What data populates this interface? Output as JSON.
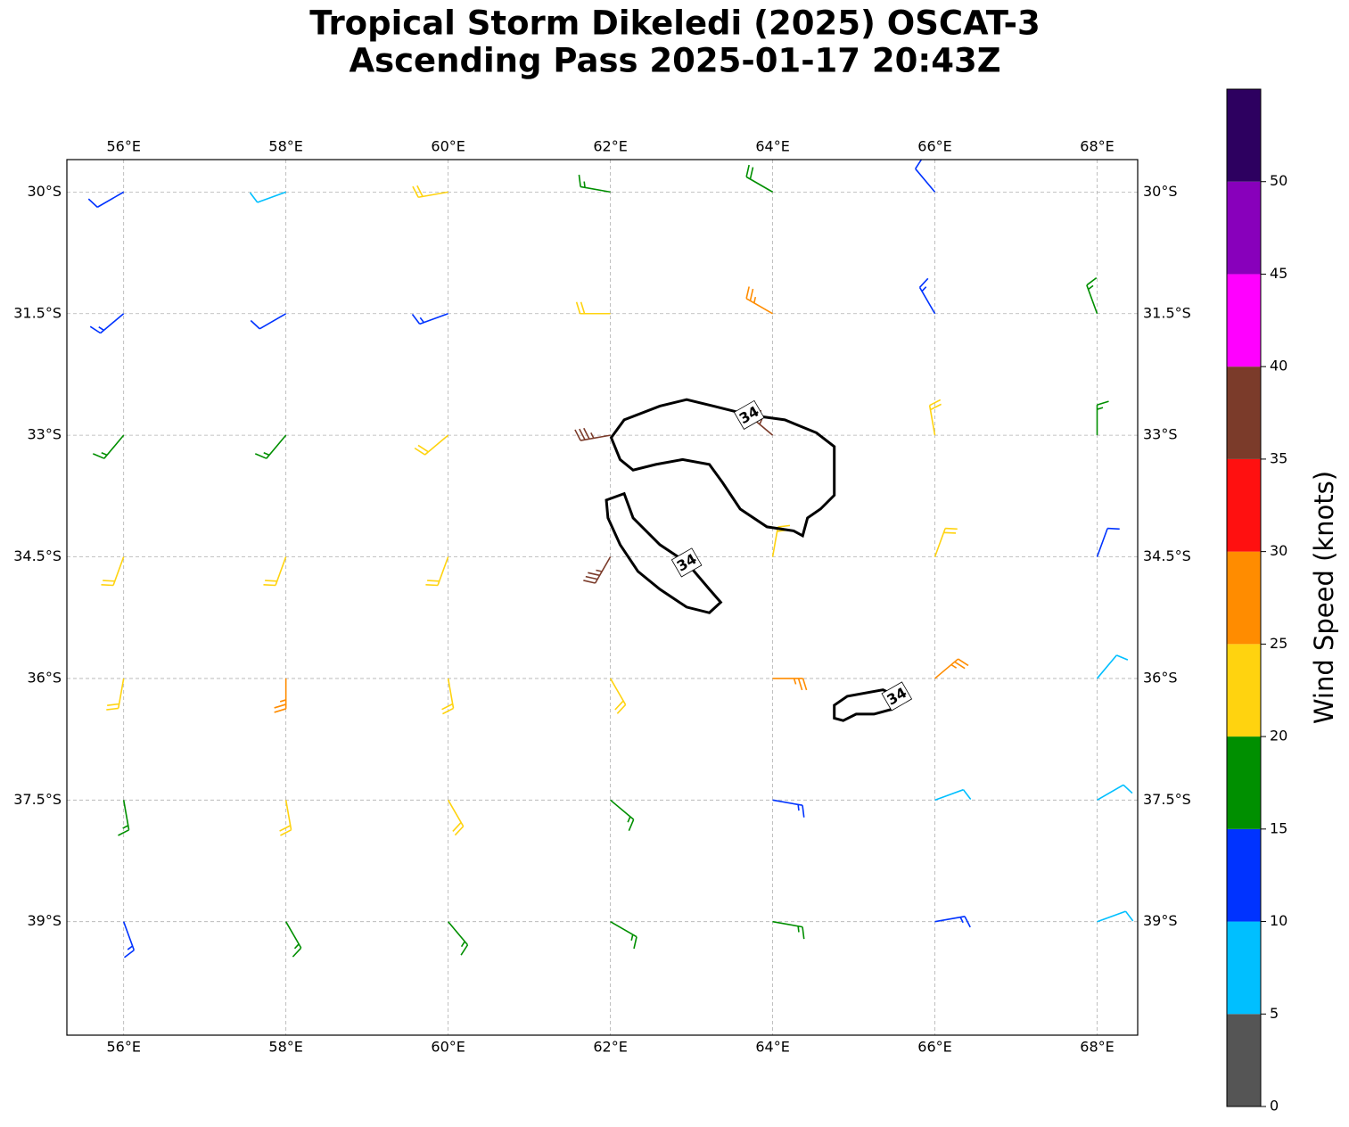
{
  "title": [
    "Tropical Storm Dikeledi (2025) OSCAT-3",
    "Ascending Pass 2025-01-17 20:43Z"
  ],
  "map": {
    "xlim": [
      55.3,
      68.5
    ],
    "ylim": [
      -40.4,
      -29.6
    ],
    "xticks": [
      {
        "value": 56,
        "label": "56°E"
      },
      {
        "value": 58,
        "label": "58°E"
      },
      {
        "value": 60,
        "label": "60°E"
      },
      {
        "value": 62,
        "label": "62°E"
      },
      {
        "value": 64,
        "label": "64°E"
      },
      {
        "value": 66,
        "label": "66°E"
      },
      {
        "value": 68,
        "label": "68°E"
      }
    ],
    "yticks": [
      {
        "value": -30,
        "label": "30°S"
      },
      {
        "value": -31.5,
        "label": "31.5°S"
      },
      {
        "value": -33,
        "label": "33°S"
      },
      {
        "value": -34.5,
        "label": "34.5°S"
      },
      {
        "value": -36,
        "label": "36°S"
      },
      {
        "value": -37.5,
        "label": "37.5°S"
      },
      {
        "value": -39,
        "label": "39°S"
      }
    ],
    "grid": true
  },
  "barbs": {
    "lon": [
      56,
      58,
      60,
      62,
      64,
      66,
      68
    ],
    "lat": [
      -30,
      -31.5,
      -33,
      -34.5,
      -36,
      -37.5,
      -39
    ],
    "speed": [
      [
        10,
        8,
        22,
        17,
        18,
        12,
        null
      ],
      [
        13,
        11,
        13,
        22,
        27,
        13,
        17
      ],
      [
        17,
        17,
        22,
        37,
        37,
        22,
        17
      ],
      [
        22,
        22,
        22,
        37,
        20,
        22,
        10
      ],
      [
        22,
        27,
        22,
        22,
        27,
        27,
        8
      ],
      [
        17,
        22,
        22,
        17,
        13,
        8,
        8
      ],
      [
        13,
        17,
        17,
        17,
        17,
        13,
        8
      ]
    ],
    "direction": [
      [
        240,
        250,
        260,
        280,
        300,
        320,
        null
      ],
      [
        230,
        240,
        250,
        270,
        300,
        330,
        340
      ],
      [
        220,
        220,
        230,
        260,
        310,
        350,
        0
      ],
      [
        200,
        200,
        200,
        210,
        10,
        20,
        20
      ],
      [
        190,
        180,
        170,
        150,
        90,
        50,
        40
      ],
      [
        170,
        170,
        150,
        130,
        100,
        70,
        60
      ],
      [
        160,
        150,
        140,
        120,
        100,
        80,
        70
      ]
    ]
  },
  "contours": [
    {
      "level": 34,
      "lon": [
        62.01,
        62.17,
        62.61,
        62.94,
        63.27,
        63.71,
        64.15,
        64.54,
        64.76,
        64.76,
        64.59,
        64.43,
        64.37,
        64.26,
        63.93,
        63.6,
        63.38,
        63.22,
        62.89,
        62.56,
        62.28,
        62.12
      ],
      "lat": [
        -33.03,
        -32.81,
        -32.64,
        -32.56,
        -32.64,
        -32.75,
        -32.81,
        -32.97,
        -33.14,
        -33.74,
        -33.91,
        -34.02,
        -34.24,
        -34.18,
        -34.13,
        -33.91,
        -33.58,
        -33.36,
        -33.3,
        -33.36,
        -33.43,
        -33.3
      ]
    },
    {
      "level": 34,
      "lon": [
        61.95,
        62.17,
        62.28,
        62.61,
        62.94,
        63.22,
        63.36,
        63.22,
        62.94,
        62.61,
        62.34,
        62.12,
        61.97
      ],
      "lat": [
        -33.8,
        -33.72,
        -34.02,
        -34.35,
        -34.57,
        -34.9,
        -35.06,
        -35.19,
        -35.12,
        -34.9,
        -34.68,
        -34.35,
        -34.02
      ]
    },
    {
      "level": 34,
      "lon": [
        64.76,
        64.92,
        65.36,
        65.53,
        65.47,
        65.25,
        65.03,
        64.87,
        64.76
      ],
      "lat": [
        -36.33,
        -36.22,
        -36.14,
        -36.22,
        -36.38,
        -36.44,
        -36.44,
        -36.52,
        -36.49
      ]
    }
  ],
  "colorbar": {
    "label": "Wind Speed (knots)",
    "bounds": [
      0,
      5,
      10,
      15,
      20,
      25,
      30,
      35,
      40,
      45,
      50,
      55
    ],
    "colors": [
      "#555555",
      "#00bfff",
      "#0033ff",
      "#008f00",
      "#ffd30f",
      "#ff8c00",
      "#ff1010",
      "#7b3b2a",
      "#ff00ff",
      "#8800bb",
      "#2d0060"
    ],
    "ticks": [
      0,
      5,
      10,
      15,
      20,
      25,
      30,
      35,
      40,
      45,
      50
    ]
  }
}
